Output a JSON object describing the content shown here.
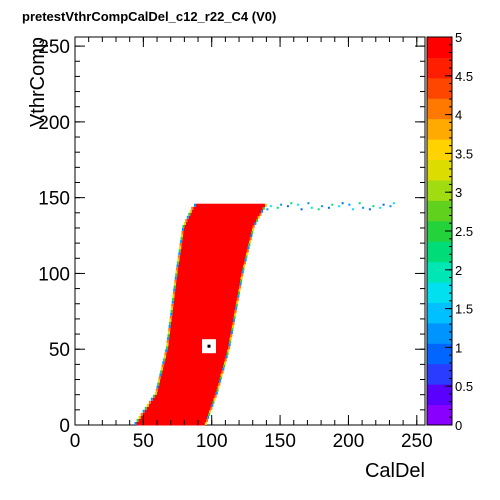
{
  "chart_data": {
    "type": "heatmap",
    "title": "pretestVthrCompCalDel_c12_r22_C4 (V0)",
    "xlabel": "CalDel",
    "ylabel": "VthrComp",
    "xlim": [
      0,
      256
    ],
    "ylim": [
      0,
      256
    ],
    "x_ticks": [
      "0",
      "50",
      "100",
      "150",
      "200",
      "250"
    ],
    "y_ticks": [
      "0",
      "50",
      "100",
      "150",
      "200",
      "250"
    ],
    "z_range": [
      0,
      5
    ],
    "z_ticks": [
      "0",
      "0.5",
      "1",
      "1.5",
      "2",
      "2.5",
      "3",
      "3.5",
      "4",
      "4.5",
      "5"
    ],
    "palette": [
      "#8a00ff",
      "#5a00ff",
      "#2a3cff",
      "#0066ff",
      "#0094ff",
      "#00c0ff",
      "#00e0ee",
      "#00e6b4",
      "#00dc78",
      "#24d23c",
      "#60d21e",
      "#a0dc10",
      "#dcdc00",
      "#ffd200",
      "#ffaa00",
      "#ff7800",
      "#ff4600",
      "#ff1e00",
      "#ff0000"
    ],
    "region": {
      "description_points_lower_edge": [
        [
          45,
          0
        ],
        [
          60,
          20
        ],
        [
          68,
          50
        ],
        [
          75,
          100
        ],
        [
          80,
          130
        ],
        [
          87,
          143
        ],
        [
          90,
          145
        ]
      ],
      "description_points_upper_edge": [
        [
          95,
          0
        ],
        [
          103,
          20
        ],
        [
          112,
          50
        ],
        [
          122,
          100
        ],
        [
          130,
          130
        ],
        [
          138,
          143
        ],
        [
          140,
          145
        ]
      ],
      "max_vthr": 145,
      "value": 5
    },
    "top_tail": {
      "x_range": [
        140,
        235
      ],
      "y_range": [
        142,
        147
      ],
      "value": 1.5
    },
    "blank_pixel": {
      "x": 98,
      "y": 52
    }
  }
}
